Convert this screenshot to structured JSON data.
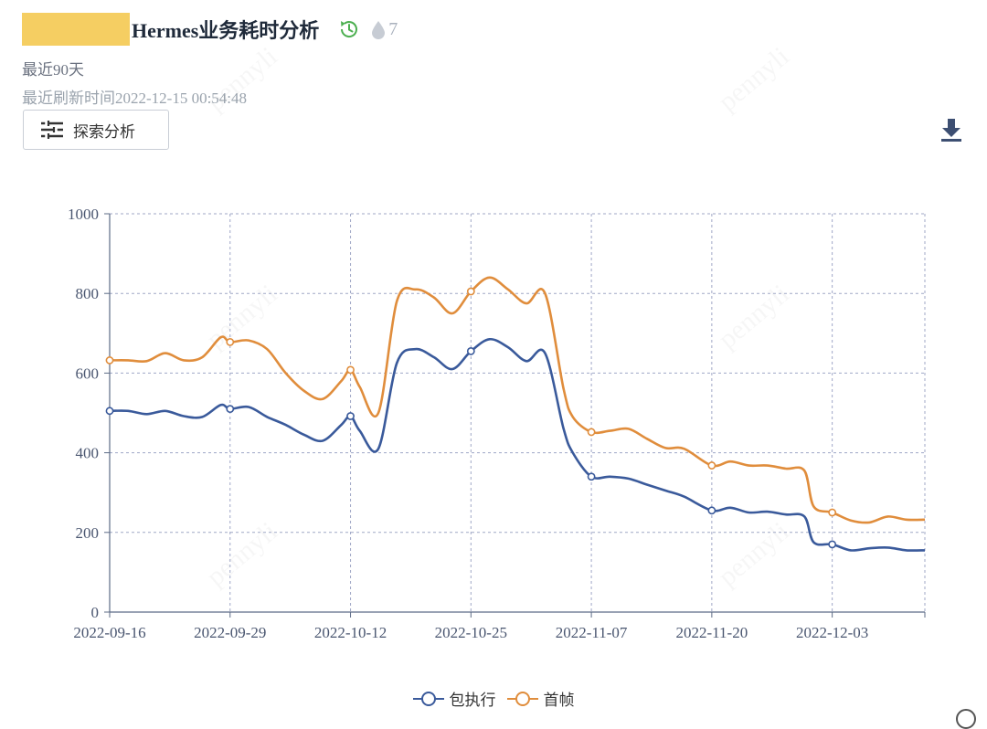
{
  "header": {
    "title": "Hermes业务耗时分析",
    "views_count": "7",
    "range_text": "最近90天",
    "refresh_text": "最近刷新时间2022-12-15 00:54:48"
  },
  "toolbar": {
    "explore_label": "探索分析"
  },
  "icons": {
    "history": "history-icon",
    "views": "drop-icon",
    "explore": "sliders-icon",
    "download": "download-icon"
  },
  "watermark_text": "pennyli",
  "colors": {
    "series1": "#3a5a9b",
    "series2": "#e08d3c",
    "axis": "#5c6b86",
    "grid": "#9fa7c6",
    "highlight": "#f5ce62",
    "history_icon": "#4caf50"
  },
  "chart_data": {
    "type": "line",
    "title": "",
    "xlabel": "",
    "ylabel": "",
    "ylim": [
      0,
      1000
    ],
    "yticks": [
      0,
      200,
      400,
      600,
      800,
      1000
    ],
    "x_start": "2022-09-16",
    "x_end": "2022-12-13",
    "xticks": [
      "2022-09-16",
      "2022-09-29",
      "2022-10-12",
      "2022-10-25",
      "2022-11-07",
      "2022-11-20",
      "2022-12-03"
    ],
    "grid": true,
    "legend_position": "bottom",
    "x": [
      "2022-09-16",
      "2022-09-18",
      "2022-09-20",
      "2022-09-22",
      "2022-09-24",
      "2022-09-26",
      "2022-09-28",
      "2022-09-29",
      "2022-10-01",
      "2022-10-03",
      "2022-10-05",
      "2022-10-07",
      "2022-10-09",
      "2022-10-11",
      "2022-10-12",
      "2022-10-13",
      "2022-10-15",
      "2022-10-17",
      "2022-10-19",
      "2022-10-21",
      "2022-10-23",
      "2022-10-25",
      "2022-10-27",
      "2022-10-29",
      "2022-10-31",
      "2022-11-02",
      "2022-11-04",
      "2022-11-05",
      "2022-11-07",
      "2022-11-09",
      "2022-11-11",
      "2022-11-13",
      "2022-11-15",
      "2022-11-17",
      "2022-11-20",
      "2022-11-22",
      "2022-11-24",
      "2022-11-26",
      "2022-11-28",
      "2022-11-30",
      "2022-12-01",
      "2022-12-03",
      "2022-12-05",
      "2022-12-07",
      "2022-12-09",
      "2022-12-11",
      "2022-12-13"
    ],
    "series": [
      {
        "name": "包执行",
        "values": [
          505,
          505,
          497,
          505,
          492,
          490,
          520,
          510,
          515,
          490,
          470,
          445,
          430,
          470,
          492,
          455,
          410,
          625,
          660,
          640,
          610,
          655,
          685,
          665,
          630,
          650,
          460,
          400,
          340,
          340,
          335,
          320,
          305,
          290,
          255,
          262,
          250,
          252,
          245,
          240,
          175,
          170,
          155,
          160,
          162,
          155,
          155
        ]
      },
      {
        "name": "首帧",
        "values": [
          632,
          632,
          630,
          650,
          632,
          640,
          690,
          678,
          682,
          660,
          600,
          555,
          535,
          580,
          608,
          565,
          500,
          780,
          810,
          790,
          750,
          805,
          840,
          810,
          775,
          800,
          560,
          490,
          452,
          455,
          460,
          435,
          412,
          410,
          368,
          378,
          368,
          368,
          360,
          355,
          265,
          250,
          230,
          225,
          240,
          232,
          232
        ]
      }
    ]
  }
}
